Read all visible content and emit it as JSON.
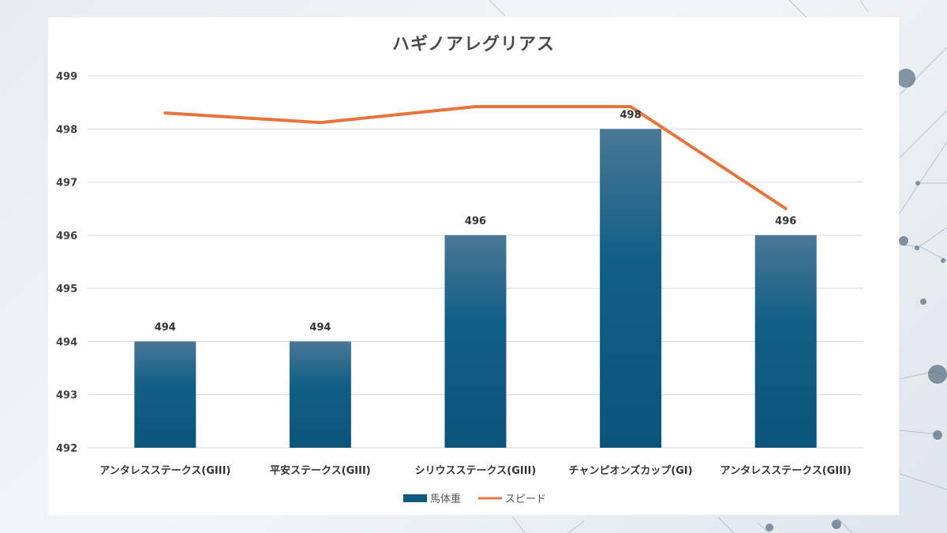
{
  "chart_data": {
    "type": "bar",
    "title": "ハギノアレグリアス",
    "categories": [
      "アンタレスステークス(GIII)",
      "平安ステークス(GIII)",
      "シリウスステークス(GIII)",
      "チャンピオンズカップ(GI)",
      "アンタレスステークス(GIII)"
    ],
    "series": [
      {
        "name": "馬体重",
        "type": "bar",
        "values": [
          494,
          494,
          496,
          498,
          496
        ],
        "color": "#0c5a80"
      },
      {
        "name": "スピード",
        "type": "line",
        "values": [
          498.3,
          498.12,
          498.42,
          498.42,
          496.5
        ],
        "color": "#e8743b"
      }
    ],
    "data_labels": [
      "494",
      "494",
      "496",
      "498",
      "496"
    ],
    "ylim": [
      492,
      499
    ],
    "yticks": [
      492,
      493,
      494,
      495,
      496,
      497,
      498,
      499
    ],
    "grid": true,
    "legend_position": "bottom"
  }
}
